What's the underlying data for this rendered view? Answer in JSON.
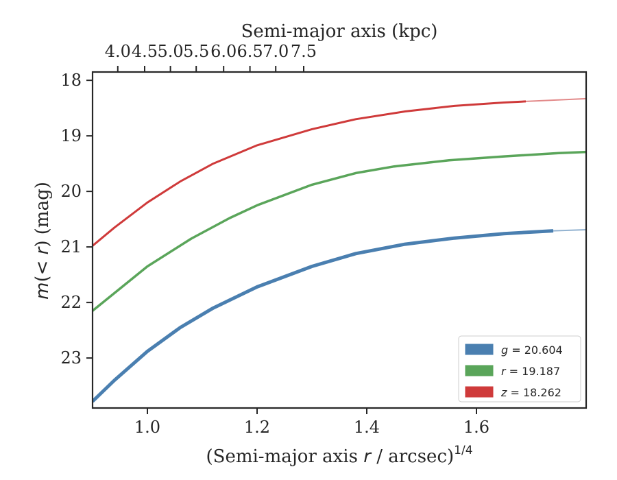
{
  "chart_data": {
    "type": "line",
    "xlabel_prefix": "(Semi-major axis ",
    "xlabel_var": "r",
    "xlabel_mid": " / arcsec)",
    "xlabel_sup": "1/4",
    "ylabel_prefix": "m",
    "ylabel_mid": "(< ",
    "ylabel_var": "r",
    "ylabel_suffix": ") (mag)",
    "top_xlabel": "Semi-major axis (kpc)",
    "xlim": [
      0.9,
      1.8
    ],
    "ylim": [
      23.9,
      17.85
    ],
    "y_inverted": true,
    "x_ticks": [
      "1.0",
      "1.2",
      "1.4",
      "1.6"
    ],
    "y_ticks": [
      "18",
      "19",
      "20",
      "21",
      "22",
      "23"
    ],
    "top_ticks": [
      "4.0",
      "4.5",
      "5.0",
      "5.5",
      "6.0",
      "6.5",
      "7.0",
      "7.5"
    ],
    "top_tick_x": [
      0.946,
      0.995,
      1.042,
      1.089,
      1.139,
      1.187,
      1.234,
      1.285
    ],
    "legend_position": "lower-right",
    "series": [
      {
        "band": "g",
        "value": "20.604",
        "color": "#4a7fb0",
        "x": [
          0.9,
          0.94,
          1.0,
          1.06,
          1.12,
          1.2,
          1.3,
          1.38,
          1.47,
          1.56,
          1.65,
          1.74
        ],
        "y": [
          23.78,
          23.4,
          22.88,
          22.45,
          22.1,
          21.72,
          21.35,
          21.12,
          20.95,
          20.84,
          20.76,
          20.71
        ],
        "extrap_x": [
          1.74,
          1.8
        ],
        "extrap_y": [
          20.71,
          20.69
        ]
      },
      {
        "band": "r",
        "value": "19.187",
        "color": "#5aa55a",
        "x": [
          0.9,
          0.95,
          1.0,
          1.08,
          1.15,
          1.2,
          1.3,
          1.38,
          1.45,
          1.55,
          1.65,
          1.75,
          1.8
        ],
        "y": [
          22.15,
          21.75,
          21.35,
          20.85,
          20.48,
          20.25,
          19.88,
          19.67,
          19.55,
          19.44,
          19.37,
          19.31,
          19.29
        ],
        "extrap_x": [],
        "extrap_y": []
      },
      {
        "band": "z",
        "value": "18.262",
        "color": "#cf3a3a",
        "x": [
          0.9,
          0.94,
          1.0,
          1.06,
          1.12,
          1.2,
          1.3,
          1.38,
          1.47,
          1.56,
          1.65,
          1.69
        ],
        "y": [
          20.98,
          20.65,
          20.2,
          19.82,
          19.5,
          19.17,
          18.88,
          18.7,
          18.56,
          18.46,
          18.4,
          18.38
        ],
        "extrap_x": [
          1.69,
          1.8
        ],
        "extrap_y": [
          18.38,
          18.33
        ]
      }
    ]
  }
}
